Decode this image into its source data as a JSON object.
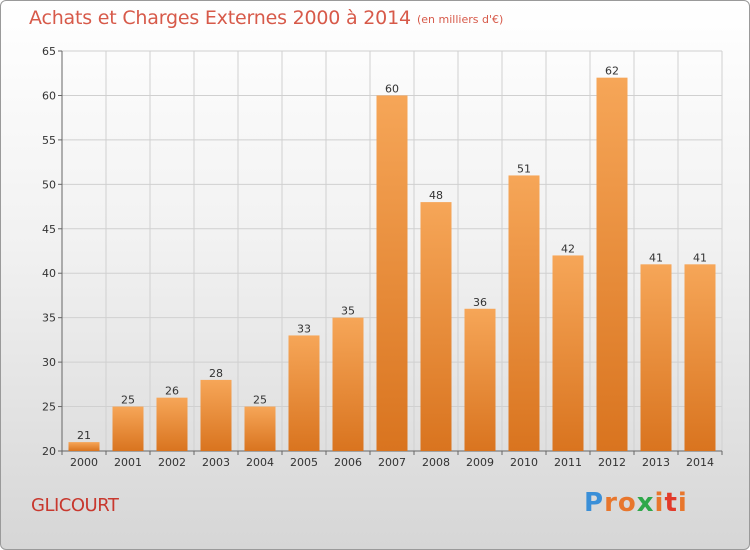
{
  "title": "Achats et Charges Externes 2000 à 2014",
  "unit_note": "(en milliers d'€)",
  "commune": "GLICOURT",
  "logo": {
    "text": "Proxiti",
    "letter_colors": [
      "#3a8fd8",
      "#e8762c",
      "#e8762c",
      "#2ea84a",
      "#e8762c",
      "#e23a2a",
      "#e8762c"
    ]
  },
  "colors": {
    "bar_light": "#f6a658",
    "bar_dark": "#d9741f",
    "title": "#d75a4a",
    "commune": "#c8382e"
  },
  "chart_data": {
    "type": "bar",
    "categories": [
      "2000",
      "2001",
      "2002",
      "2003",
      "2004",
      "2005",
      "2006",
      "2007",
      "2008",
      "2009",
      "2010",
      "2011",
      "2012",
      "2013",
      "2014"
    ],
    "values": [
      21,
      25,
      26,
      28,
      25,
      33,
      35,
      60,
      48,
      36,
      51,
      42,
      62,
      41,
      41
    ],
    "ylim": [
      20,
      65
    ],
    "yticks": [
      20,
      25,
      30,
      35,
      40,
      45,
      50,
      55,
      60,
      65
    ],
    "grid": true,
    "xlabel": "",
    "ylabel": ""
  }
}
